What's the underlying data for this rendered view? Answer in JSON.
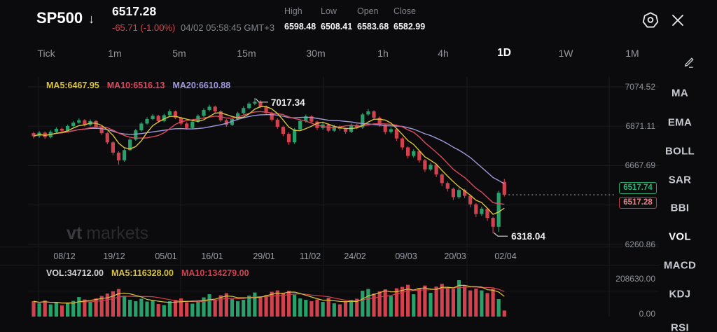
{
  "header": {
    "symbol": "SP500",
    "arrow": "↓",
    "price": "6517.28",
    "change": "-65.71 (-1.00%)",
    "datetime": "04/02 05:58:45 GMT+3",
    "stats": [
      {
        "label": "High",
        "value": "6598.48"
      },
      {
        "label": "Low",
        "value": "6508.41"
      },
      {
        "label": "Open",
        "value": "6583.68"
      },
      {
        "label": "Close",
        "value": "6582.99"
      }
    ],
    "icons": {
      "gear": "settings-gear",
      "close": "close-x"
    }
  },
  "timeframes": {
    "items": [
      "Tick",
      "1m",
      "5m",
      "15m",
      "30m",
      "1h",
      "4h",
      "1D",
      "1W",
      "1M"
    ],
    "active": "1D"
  },
  "sidebar": {
    "items": [
      "MA",
      "EMA",
      "BOLL",
      "SAR",
      "BBI",
      "VOL",
      "MACD",
      "KDJ",
      "RSI"
    ],
    "active": "VOL",
    "pencil_icon": "draw-pencil"
  },
  "watermark": {
    "bold": "vt",
    "rest": "markets"
  },
  "chart_data": {
    "type": "candlestick",
    "title": "SP500 daily candlestick chart with volume",
    "ma_labels": [
      {
        "text": "MA5:6467.95",
        "color": "#d9c33c"
      },
      {
        "text": "MA10:6516.13",
        "color": "#dc4a60"
      },
      {
        "text": "MA20:6610.88",
        "color": "#a099dd"
      }
    ],
    "y_ticks": [
      "7074.52",
      "6871.11",
      "6667.69",
      "6260.86"
    ],
    "grid_prices": [
      7074.52,
      6871.11,
      6667.69,
      6464.28,
      6260.86
    ],
    "ylim": [
      6260.86,
      7074.52
    ],
    "dates": [
      "08/12",
      "19/12",
      "05/01",
      "16/01",
      "29/01",
      "11/02",
      "24/02",
      "09/03",
      "20/03",
      "02/04"
    ],
    "annotations": [
      {
        "text": "7017.34",
        "price": 7017.34,
        "candle": 39,
        "side": "high"
      },
      {
        "text": "6318.04",
        "price": 6318.04,
        "candle": 81,
        "side": "low"
      }
    ],
    "price_line": {
      "value": 6517.28
    },
    "badges": [
      {
        "text": "6517.74",
        "kind": "green"
      },
      {
        "text": "6517.28",
        "kind": "red"
      }
    ],
    "volume_pane": {
      "labels": [
        {
          "text": "VOL:34712.00",
          "color": "#d6d6d9"
        },
        {
          "text": "MA5:116328.00",
          "color": "#d9c33c"
        },
        {
          "text": "MA10:134279.00",
          "color": "#d2404f"
        }
      ],
      "y_ticks": [
        "208630.00",
        "0.00"
      ],
      "max": 208630
    },
    "colors": {
      "up": "#28a06a",
      "down": "#d0424e",
      "ma5": "#d9c33c",
      "ma10": "#dc4a60",
      "ma20": "#a099dd",
      "vol_ma5": "#d9c33c",
      "vol_ma10": "#d2404f",
      "grid": "#1b1b1e",
      "dotted": "#7c7d81"
    },
    "candles": [
      [
        6835,
        6843,
        6808,
        6820,
        88000
      ],
      [
        6820,
        6846,
        6812,
        6838,
        76000
      ],
      [
        6838,
        6844,
        6806,
        6815,
        92000
      ],
      [
        6815,
        6850,
        6809,
        6842,
        70000
      ],
      [
        6842,
        6866,
        6836,
        6858,
        84000
      ],
      [
        6858,
        6864,
        6838,
        6848,
        64000
      ],
      [
        6848,
        6880,
        6842,
        6872,
        78000
      ],
      [
        6872,
        6898,
        6866,
        6890,
        90000
      ],
      [
        6890,
        6912,
        6884,
        6902,
        112000
      ],
      [
        6902,
        6908,
        6870,
        6878,
        98000
      ],
      [
        6878,
        6906,
        6872,
        6898,
        86000
      ],
      [
        6898,
        6904,
        6858,
        6865,
        104000
      ],
      [
        6865,
        6872,
        6826,
        6835,
        118000
      ],
      [
        6835,
        6842,
        6778,
        6788,
        132000
      ],
      [
        6788,
        6795,
        6722,
        6735,
        145000
      ],
      [
        6735,
        6742,
        6672,
        6695,
        158000
      ],
      [
        6695,
        6756,
        6688,
        6748,
        120000
      ],
      [
        6748,
        6810,
        6742,
        6802,
        96000
      ],
      [
        6802,
        6858,
        6796,
        6850,
        88000
      ],
      [
        6850,
        6893,
        6844,
        6885,
        102000
      ],
      [
        6885,
        6918,
        6880,
        6908,
        86000
      ],
      [
        6908,
        6934,
        6902,
        6925,
        94000
      ],
      [
        6925,
        6930,
        6890,
        6898,
        72000
      ],
      [
        6898,
        6936,
        6892,
        6928,
        66000
      ],
      [
        6928,
        6958,
        6922,
        6948,
        88000
      ],
      [
        6948,
        6952,
        6908,
        6915,
        96000
      ],
      [
        6915,
        6920,
        6876,
        6885,
        104000
      ],
      [
        6885,
        6892,
        6854,
        6862,
        82000
      ],
      [
        6862,
        6903,
        6856,
        6895,
        74000
      ],
      [
        6895,
        6932,
        6888,
        6925,
        92000
      ],
      [
        6925,
        6964,
        6918,
        6955,
        110000
      ],
      [
        6955,
        6982,
        6948,
        6972,
        128000
      ],
      [
        6972,
        6978,
        6940,
        6948,
        96000
      ],
      [
        6948,
        6954,
        6894,
        6902,
        122000
      ],
      [
        6902,
        6908,
        6868,
        6878,
        134000
      ],
      [
        6878,
        6916,
        6872,
        6908,
        100000
      ],
      [
        6908,
        6946,
        6902,
        6938,
        88000
      ],
      [
        6938,
        6974,
        6932,
        6965,
        96000
      ],
      [
        6965,
        6996,
        6958,
        6988,
        120000
      ],
      [
        6988,
        7017.34,
        6980,
        6998,
        138000
      ],
      [
        6998,
        7006,
        6964,
        6972,
        116000
      ],
      [
        6972,
        6978,
        6930,
        6940,
        124000
      ],
      [
        6940,
        6946,
        6896,
        6905,
        142000
      ],
      [
        6905,
        6912,
        6858,
        6868,
        150000
      ],
      [
        6868,
        6874,
        6820,
        6832,
        136000
      ],
      [
        6832,
        6840,
        6775,
        6788,
        148000
      ],
      [
        6788,
        6862,
        6780,
        6855,
        126000
      ],
      [
        6855,
        6906,
        6848,
        6898,
        104000
      ],
      [
        6898,
        6932,
        6890,
        6922,
        96000
      ],
      [
        6922,
        6928,
        6886,
        6895,
        88000
      ],
      [
        6895,
        6900,
        6852,
        6862,
        98000
      ],
      [
        6862,
        6890,
        6854,
        6880,
        84000
      ],
      [
        6880,
        6886,
        6840,
        6848,
        108000
      ],
      [
        6848,
        6878,
        6842,
        6870,
        76000
      ],
      [
        6870,
        6876,
        6848,
        6858,
        70000
      ],
      [
        6858,
        6864,
        6832,
        6842,
        88000
      ],
      [
        6842,
        6886,
        6836,
        6878,
        96000
      ],
      [
        6878,
        6884,
        6856,
        6865,
        102000
      ],
      [
        6865,
        6940,
        6858,
        6932,
        148000
      ],
      [
        6932,
        6960,
        6924,
        6948,
        158000
      ],
      [
        6948,
        6954,
        6905,
        6915,
        132000
      ],
      [
        6915,
        6922,
        6868,
        6878,
        144000
      ],
      [
        6878,
        6884,
        6830,
        6842,
        156000
      ],
      [
        6842,
        6866,
        6834,
        6856,
        118000
      ],
      [
        6856,
        6862,
        6796,
        6808,
        162000
      ],
      [
        6808,
        6814,
        6750,
        6762,
        170000
      ],
      [
        6762,
        6768,
        6705,
        6718,
        182000
      ],
      [
        6718,
        6752,
        6710,
        6742,
        128000
      ],
      [
        6742,
        6748,
        6682,
        6695,
        164000
      ],
      [
        6695,
        6702,
        6635,
        6648,
        178000
      ],
      [
        6648,
        6682,
        6640,
        6672,
        136000
      ],
      [
        6672,
        6678,
        6608,
        6622,
        172000
      ],
      [
        6622,
        6628,
        6562,
        6578,
        188000
      ],
      [
        6578,
        6586,
        6534,
        6548,
        166000
      ],
      [
        6548,
        6554,
        6490,
        6505,
        160000
      ],
      [
        6505,
        6552,
        6496,
        6542,
        208630
      ],
      [
        6542,
        6548,
        6500,
        6512,
        175000
      ],
      [
        6512,
        6518,
        6452,
        6468,
        150000
      ],
      [
        6468,
        6474,
        6402,
        6418,
        160000
      ],
      [
        6418,
        6456,
        6408,
        6445,
        150000
      ],
      [
        6445,
        6450,
        6382,
        6398,
        135000
      ],
      [
        6398,
        6404,
        6318.04,
        6352,
        160000
      ],
      [
        6352,
        6538,
        6326,
        6528,
        100000
      ],
      [
        6583.68,
        6598.48,
        6508.41,
        6517.28,
        34712
      ]
    ]
  }
}
